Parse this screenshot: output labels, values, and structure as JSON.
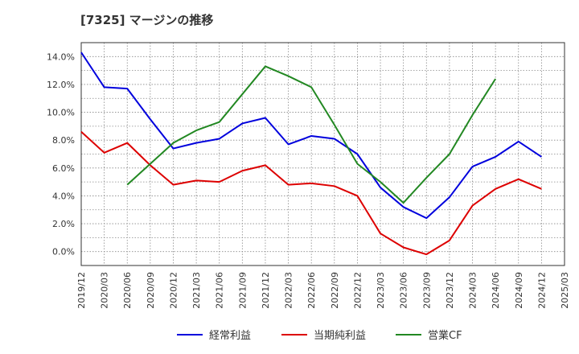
{
  "chart_data": {
    "type": "line",
    "title": "[7325]  マージンの推移",
    "xlabel": "",
    "ylabel": "",
    "ylim": [
      -1.0,
      15.0
    ],
    "yticks": [
      0.0,
      2.0,
      4.0,
      6.0,
      8.0,
      10.0,
      12.0,
      14.0
    ],
    "ytick_labels": [
      "0.0%",
      "2.0%",
      "4.0%",
      "6.0%",
      "8.0%",
      "10.0%",
      "12.0%",
      "14.0%"
    ],
    "x": [
      "2019/12",
      "2020/03",
      "2020/06",
      "2020/09",
      "2020/12",
      "2021/03",
      "2021/06",
      "2021/09",
      "2021/12",
      "2022/03",
      "2022/06",
      "2022/09",
      "2022/12",
      "2023/03",
      "2023/06",
      "2023/09",
      "2023/12",
      "2024/03",
      "2024/06",
      "2024/09",
      "2024/12",
      "2025/03"
    ],
    "grid": true,
    "legend_position": "bottom",
    "series": [
      {
        "name": "経常利益",
        "color": "#0000dd",
        "values": [
          14.3,
          11.8,
          11.7,
          9.5,
          7.4,
          7.8,
          8.1,
          9.2,
          9.6,
          7.7,
          8.3,
          8.1,
          7.0,
          4.6,
          3.2,
          2.4,
          3.9,
          6.1,
          6.8,
          7.9,
          6.8,
          null
        ]
      },
      {
        "name": "当期純利益",
        "color": "#dd0000",
        "values": [
          8.6,
          7.1,
          7.8,
          6.2,
          4.8,
          5.1,
          5.0,
          5.8,
          6.2,
          4.8,
          4.9,
          4.7,
          4.0,
          1.3,
          0.3,
          -0.2,
          0.8,
          3.3,
          4.5,
          5.2,
          4.5,
          null
        ]
      },
      {
        "name": "営業CF",
        "color": "#228822",
        "values": [
          null,
          null,
          4.8,
          6.3,
          7.8,
          8.7,
          9.3,
          11.3,
          13.3,
          12.6,
          11.8,
          9.1,
          6.3,
          5.0,
          3.5,
          5.3,
          7.0,
          9.8,
          12.4,
          null,
          null,
          null
        ]
      }
    ]
  }
}
